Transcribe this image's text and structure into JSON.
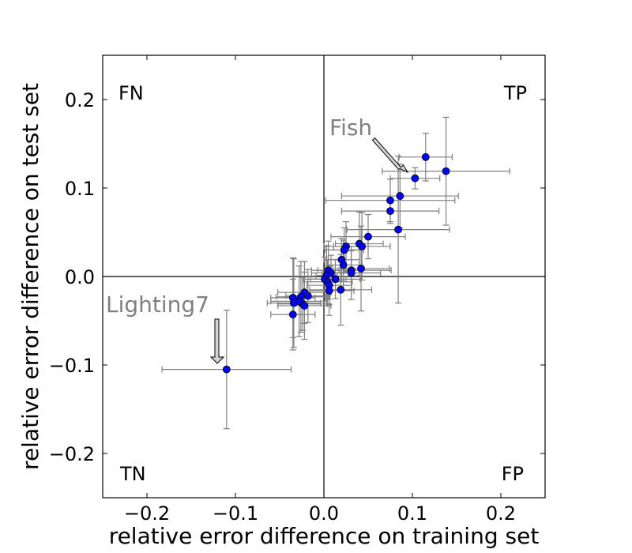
{
  "chart_data": {
    "type": "scatter",
    "title": "",
    "xlabel": "relative error difference on training set",
    "ylabel": "relative error difference on test set",
    "xlim": [
      -0.25,
      0.25
    ],
    "ylim": [
      -0.25,
      0.25
    ],
    "xticks": [
      {
        "value": -0.2,
        "label": "−0.2"
      },
      {
        "value": -0.1,
        "label": "−0.1"
      },
      {
        "value": 0.0,
        "label": "0.0"
      },
      {
        "value": 0.1,
        "label": "0.1"
      },
      {
        "value": 0.2,
        "label": "0.2"
      }
    ],
    "yticks": [
      {
        "value": 0.2,
        "label": "0.2"
      },
      {
        "value": 0.1,
        "label": "0.1"
      },
      {
        "value": 0.0,
        "label": "0.0"
      },
      {
        "value": -0.1,
        "label": "−0.1"
      },
      {
        "value": -0.2,
        "label": "−0.2"
      }
    ],
    "grid": false,
    "marker_color": "#0000ff",
    "errorbar_color": "#808080",
    "quadrant_labels": {
      "top_left": "FN",
      "top_right": "TP",
      "bottom_left": "TN",
      "bottom_right": "FP"
    },
    "annotations": [
      {
        "text": "Fish",
        "point": [
          0.094,
          0.11
        ]
      },
      {
        "text": "Lighting7",
        "point": [
          -0.12,
          -0.098
        ]
      }
    ],
    "points": [
      {
        "x": 0.115,
        "y": 0.135,
        "xerr": 0.03,
        "yerr": 0.027
      },
      {
        "x": 0.138,
        "y": 0.119,
        "xerr": 0.072,
        "yerr": 0.061
      },
      {
        "x": 0.103,
        "y": 0.111,
        "xerr": 0.028,
        "yerr": 0.012
      },
      {
        "x": 0.086,
        "y": 0.091,
        "xerr": 0.066,
        "yerr": 0.036
      },
      {
        "x": 0.075,
        "y": 0.086,
        "xerr": 0.073,
        "yerr": 0.024
      },
      {
        "x": 0.075,
        "y": 0.074,
        "xerr": 0.055,
        "yerr": 0.014
      },
      {
        "x": 0.084,
        "y": 0.053,
        "xerr": 0.058,
        "yerr": 0.083
      },
      {
        "x": 0.05,
        "y": 0.045,
        "xerr": 0.042,
        "yerr": 0.025
      },
      {
        "x": 0.04,
        "y": 0.037,
        "xerr": 0.027,
        "yerr": 0.036
      },
      {
        "x": 0.043,
        "y": 0.034,
        "xerr": 0.032,
        "yerr": 0.038
      },
      {
        "x": 0.025,
        "y": 0.034,
        "xerr": 0.025,
        "yerr": 0.028
      },
      {
        "x": 0.023,
        "y": 0.03,
        "xerr": 0.022,
        "yerr": 0.025
      },
      {
        "x": 0.02,
        "y": 0.019,
        "xerr": 0.02,
        "yerr": 0.024
      },
      {
        "x": 0.022,
        "y": 0.013,
        "xerr": 0.018,
        "yerr": 0.028
      },
      {
        "x": 0.042,
        "y": 0.009,
        "xerr": 0.032,
        "yerr": 0.048
      },
      {
        "x": 0.031,
        "y": 0.007,
        "xerr": 0.045,
        "yerr": 0.022
      },
      {
        "x": 0.031,
        "y": 0.004,
        "xerr": 0.033,
        "yerr": 0.03
      },
      {
        "x": 0.005,
        "y": 0.007,
        "xerr": 0.012,
        "yerr": 0.033
      },
      {
        "x": 0.008,
        "y": 0.004,
        "xerr": 0.022,
        "yerr": 0.02
      },
      {
        "x": 0.003,
        "y": 0.001,
        "xerr": 0.012,
        "yerr": 0.034
      },
      {
        "x": 0.001,
        "y": -0.003,
        "xerr": 0.024,
        "yerr": 0.025
      },
      {
        "x": 0.013,
        "y": -0.003,
        "xerr": 0.028,
        "yerr": 0.022
      },
      {
        "x": 0.004,
        "y": -0.006,
        "xerr": 0.028,
        "yerr": 0.025
      },
      {
        "x": 0.006,
        "y": -0.01,
        "xerr": 0.025,
        "yerr": 0.022
      },
      {
        "x": 0.006,
        "y": -0.016,
        "xerr": 0.028,
        "yerr": 0.028
      },
      {
        "x": 0.019,
        "y": -0.015,
        "xerr": 0.035,
        "yerr": 0.04
      },
      {
        "x": -0.022,
        "y": -0.018,
        "xerr": 0.03,
        "yerr": 0.035
      },
      {
        "x": -0.018,
        "y": -0.022,
        "xerr": 0.025,
        "yerr": 0.03
      },
      {
        "x": -0.035,
        "y": -0.024,
        "xerr": 0.025,
        "yerr": 0.045
      },
      {
        "x": -0.026,
        "y": -0.023,
        "xerr": 0.028,
        "yerr": 0.04
      },
      {
        "x": -0.034,
        "y": -0.03,
        "xerr": 0.03,
        "yerr": 0.05
      },
      {
        "x": -0.024,
        "y": -0.031,
        "xerr": 0.028,
        "yerr": 0.03
      },
      {
        "x": -0.028,
        "y": -0.028,
        "xerr": 0.032,
        "yerr": 0.04
      },
      {
        "x": -0.022,
        "y": -0.033,
        "xerr": 0.03,
        "yerr": 0.038
      },
      {
        "x": -0.035,
        "y": -0.043,
        "xerr": 0.025,
        "yerr": 0.04
      },
      {
        "x": -0.11,
        "y": -0.105,
        "xerr": 0.073,
        "yerr": 0.067
      }
    ]
  }
}
